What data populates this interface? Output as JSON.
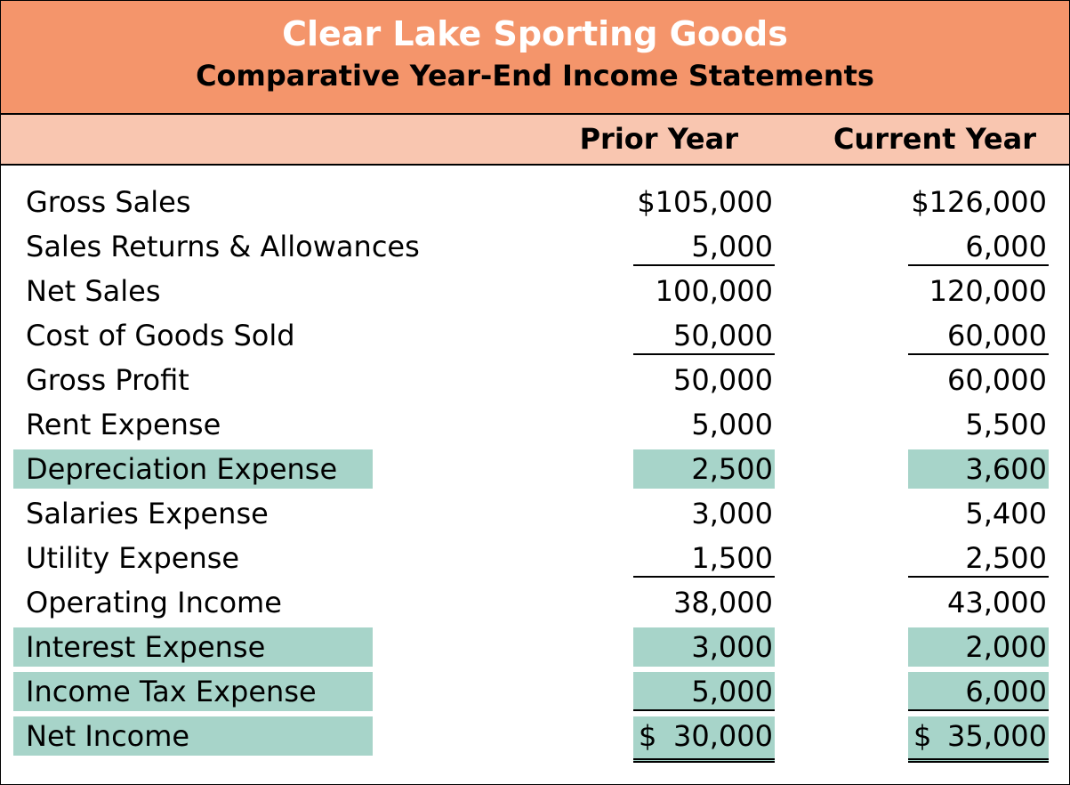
{
  "title": {
    "company": "Clear Lake Sporting Goods",
    "subtitle": "Comparative Year-End Income Statements"
  },
  "columns": {
    "prior": "Prior Year",
    "current": "Current Year"
  },
  "colors": {
    "title_bg": "#f4956b",
    "header_bg": "#f9c6b0",
    "highlight": "#a7d4c9"
  },
  "rows": [
    {
      "label": "Gross Sales",
      "prior": "$105,000",
      "current": "$126,000"
    },
    {
      "label": "Sales Returns & Allowances",
      "prior": "5,000",
      "current": "6,000"
    },
    {
      "label": "Net Sales",
      "prior": "100,000",
      "current": "120,000"
    },
    {
      "label": "Cost of Goods Sold",
      "prior": "50,000",
      "current": "60,000"
    },
    {
      "label": "Gross Profit",
      "prior": "50,000",
      "current": "60,000"
    },
    {
      "label": "Rent Expense",
      "prior": "5,000",
      "current": "5,500"
    },
    {
      "label": "Depreciation Expense",
      "prior": "2,500",
      "current": "3,600"
    },
    {
      "label": "Salaries Expense",
      "prior": "3,000",
      "current": "5,400"
    },
    {
      "label": "Utility Expense",
      "prior": "1,500",
      "current": "2,500"
    },
    {
      "label": "Operating Income",
      "prior": "38,000",
      "current": "43,000"
    },
    {
      "label": "Interest Expense",
      "prior": "3,000",
      "current": "2,000"
    },
    {
      "label": "Income Tax Expense",
      "prior": "5,000",
      "current": "6,000"
    },
    {
      "label": "Net Income",
      "prior_symbol": "$",
      "prior": "30,000",
      "current_symbol": "$",
      "current": "35,000"
    }
  ]
}
